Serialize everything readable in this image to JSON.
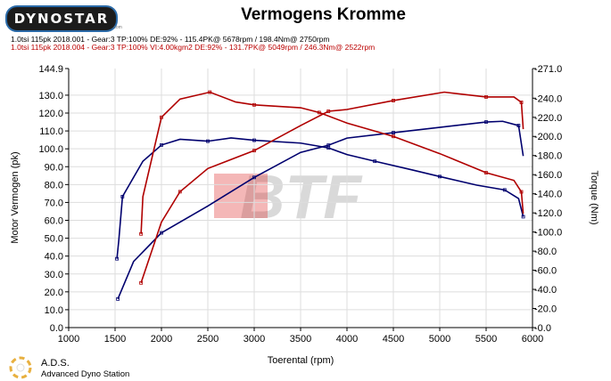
{
  "header": {
    "logo_text": "DYNOSTAR",
    "logo_sub": ".com",
    "title": "Vermogens Kromme"
  },
  "legend": [
    {
      "text": "1.0tsi 115pk 2018.001 - Gear:3 TP:100% DE:92%   - 115.4PK@ 5678rpm / 198.4Nm@ 2750rpm",
      "color": "#000000"
    },
    {
      "text": "1.0tsi 115pk 2018.004 - Gear:3 TP:100% VI:4.00kgm2 DE:92%   - 131.7PK@ 5049rpm / 246.3Nm@ 2522rpm",
      "color": "#bb0000"
    }
  ],
  "footer": {
    "brand": "A.D.S.",
    "brand_full": "Advanced Dyno Station"
  },
  "watermark": "BTF",
  "chart_data": {
    "type": "line",
    "title": "Vermogens Kromme",
    "xlabel": "Toerental (rpm)",
    "ylabel": "Motor Vermogen (pk)",
    "y2label": "Torque (Nm)",
    "xlim": [
      1000,
      6000
    ],
    "ylim": [
      0,
      144.9
    ],
    "y2lim": [
      0,
      271
    ],
    "xticks": [
      "1000",
      "1500",
      "2000",
      "2500",
      "3000",
      "3500",
      "4000",
      "4500",
      "5000",
      "5500",
      "6000"
    ],
    "yticks": [
      "0.0",
      "10.0",
      "20.0",
      "30.0",
      "40.0",
      "50.0",
      "60.0",
      "70.0",
      "80.0",
      "90.0",
      "100.0",
      "110.0",
      "120.0",
      "130.0",
      "144.9"
    ],
    "y2ticks": [
      "-0.0",
      "-20.0",
      "-40.0",
      "-60.0",
      "-80.0",
      "-100.0",
      "-120.0",
      "-140.0",
      "-160.0",
      "-180.0",
      "-200.0",
      "-220.0",
      "-240.0",
      "-271.0"
    ],
    "grid": true,
    "series": [
      {
        "name": "2018.001 Power (pk)",
        "axis": "left",
        "color": "#00006e",
        "x": [
          1530,
          1700,
          2000,
          2500,
          3000,
          3500,
          3800,
          4000,
          4500,
          5000,
          5500,
          5678,
          5850,
          5900
        ],
        "y": [
          16,
          37,
          53,
          68,
          84,
          98,
          102,
          106,
          109,
          112,
          115,
          115.4,
          113,
          96
        ]
      },
      {
        "name": "2018.001 Torque (Nm)",
        "axis": "right",
        "color": "#00006e",
        "x": [
          1520,
          1540,
          1580,
          1800,
          2000,
          2200,
          2500,
          2750,
          3000,
          3500,
          3800,
          4000,
          4300,
          4700,
          5000,
          5400,
          5700,
          5850,
          5900
        ],
        "y": [
          72,
          91,
          137,
          174,
          191,
          197,
          195,
          198.4,
          196,
          193,
          188,
          181,
          174,
          165,
          158,
          149,
          144,
          135,
          116
        ]
      },
      {
        "name": "2018.004 Power (pk)",
        "axis": "left",
        "color": "#b00000",
        "x": [
          1780,
          2000,
          2200,
          2500,
          3000,
          3500,
          3800,
          4000,
          4500,
          5049,
          5500,
          5800,
          5880,
          5900
        ],
        "y": [
          25,
          59,
          76,
          89,
          99,
          113,
          121,
          122,
          127,
          131.7,
          129,
          129,
          126,
          111
        ]
      },
      {
        "name": "2018.004 Torque (Nm)",
        "axis": "right",
        "color": "#b00000",
        "x": [
          1780,
          1800,
          2000,
          2200,
          2522,
          2800,
          3000,
          3500,
          3700,
          4000,
          4500,
          5000,
          5500,
          5800,
          5880,
          5900
        ],
        "y": [
          98,
          137,
          220,
          239,
          246.3,
          236,
          233,
          230,
          225,
          214,
          200,
          182,
          162,
          154,
          142,
          119
        ]
      }
    ]
  }
}
